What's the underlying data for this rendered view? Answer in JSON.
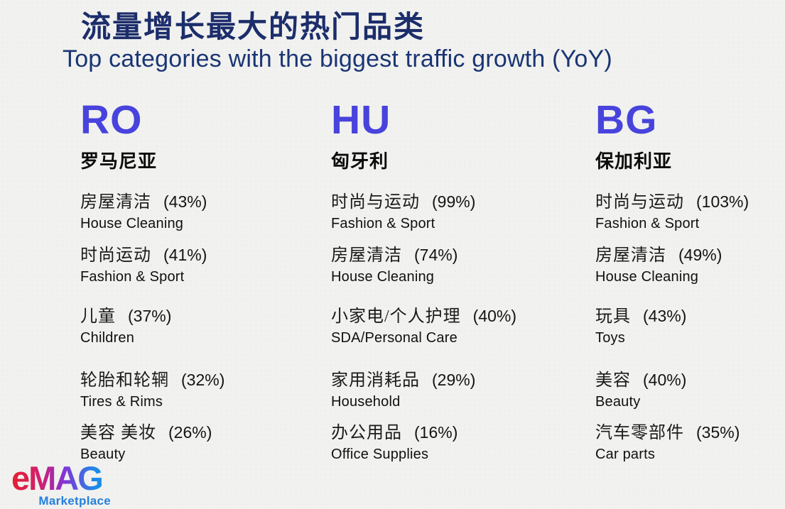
{
  "page": {
    "title_zh": "流量增长最大的热门品类",
    "title_en": "Top categories with the biggest traffic growth (YoY)"
  },
  "columns": [
    {
      "code": "RO",
      "country_zh": "罗马尼亚",
      "items": [
        {
          "zh": "房屋清洁",
          "pct": "(43%)",
          "en": "House Cleaning"
        },
        {
          "zh": "时尚运动",
          "pct": "(41%)",
          "en": "Fashion & Sport"
        },
        {
          "zh": "儿童",
          "pct": "(37%)",
          "en": "Children"
        },
        {
          "zh": "轮胎和轮辋",
          "pct": "(32%)",
          "en": "Tires & Rims"
        },
        {
          "zh": "美容 美妆",
          "pct": "(26%)",
          "en": "Beauty"
        }
      ]
    },
    {
      "code": "HU",
      "country_zh": "匈牙利",
      "items": [
        {
          "zh": "时尚与运动",
          "pct": "(99%)",
          "en": "Fashion & Sport"
        },
        {
          "zh": "房屋清洁",
          "pct": "(74%)",
          "en": "House Cleaning"
        },
        {
          "zh": "小家电/个人护理",
          "pct": "(40%)",
          "en": "SDA/Personal Care"
        },
        {
          "zh": "家用消耗品",
          "pct": "(29%)",
          "en": "Household"
        },
        {
          "zh": "办公用品",
          "pct": "(16%)",
          "en": "Office Supplies"
        }
      ]
    },
    {
      "code": "BG",
      "country_zh": "保加利亚",
      "items": [
        {
          "zh": "时尚与运动",
          "pct": "(103%)",
          "en": "Fashion & Sport"
        },
        {
          "zh": "房屋清洁",
          "pct": "(49%)",
          "en": "House Cleaning"
        },
        {
          "zh": "玩具",
          "pct": "(43%)",
          "en": "Toys"
        },
        {
          "zh": "美容",
          "pct": "(40%)",
          "en": "Beauty"
        },
        {
          "zh": "汽车零部件",
          "pct": "(35%)",
          "en": "Car parts"
        }
      ]
    }
  ],
  "logo": {
    "brand": "eMAG",
    "tagline": "Marketplace"
  },
  "colors": {
    "background": "#f1f1ef",
    "title_navy": "#1c2d6b",
    "subtitle_navy": "#1a3574",
    "country_code_blue": "#4843dc",
    "text_black": "#141414",
    "logo_red": "#e41f2d",
    "logo_purple": "#8433d6",
    "logo_blue": "#1b8be8",
    "tagline_blue": "#2380dd"
  }
}
